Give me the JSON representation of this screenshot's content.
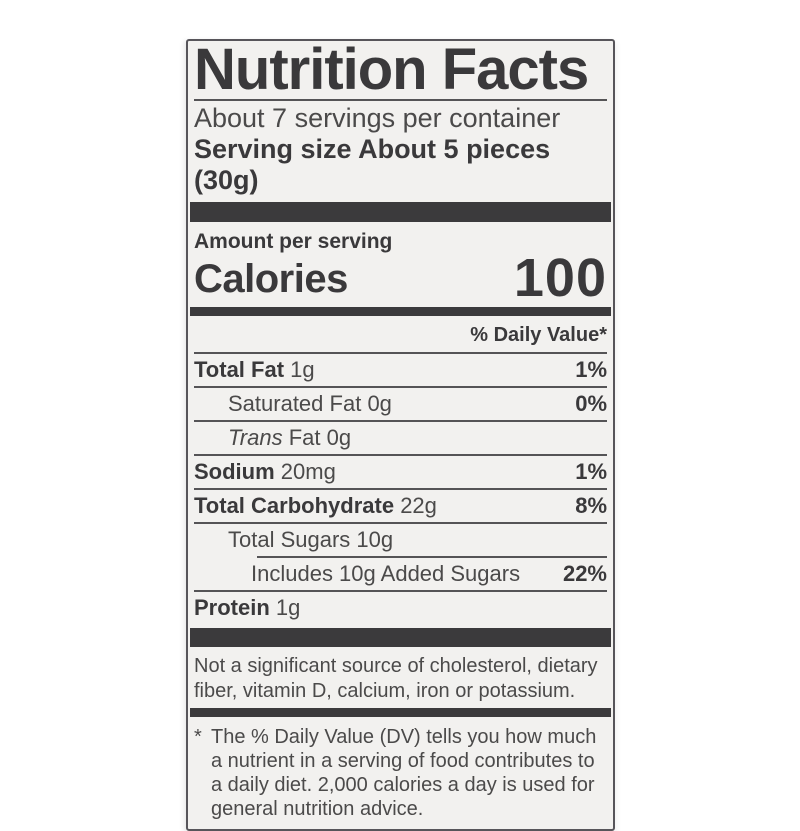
{
  "label": {
    "title": "Nutrition Facts",
    "servings_per_container": "About 7 servings per container",
    "serving_size_label": "Serving size",
    "serving_size_value": "About 5 pieces (30g)",
    "amount_per_serving": "Amount per serving",
    "calories_label": "Calories",
    "calories_value": "100",
    "daily_value_header": "% Daily Value*",
    "rows": [
      {
        "name": "Total Fat",
        "amount": "1g",
        "dv": "1%"
      },
      {
        "name": "Saturated Fat",
        "amount": "0g",
        "dv": "0%"
      },
      {
        "name": "Trans",
        "amount": "Fat 0g",
        "dv": ""
      },
      {
        "name": "Sodium",
        "amount": "20mg",
        "dv": "1%"
      },
      {
        "name": "Total Carbohydrate",
        "amount": "22g",
        "dv": "8%"
      },
      {
        "name": "Total Sugars",
        "amount": "10g",
        "dv": ""
      },
      {
        "name": "Includes 10g Added Sugars",
        "amount": "",
        "dv": "22%"
      },
      {
        "name": "Protein",
        "amount": "1g",
        "dv": ""
      }
    ],
    "not_significant": "Not a significant source of cholesterol, dietary fiber, vitamin D, calcium, iron or potassium.",
    "footnote_marker": "*",
    "footnote": "The % Daily Value (DV) tells you how much a nutrient in a serving of food contributes to a daily diet. 2,000 calories a day is used for general nutrition advice.",
    "colors": {
      "ink_bold": "#3a393b",
      "ink_regular": "#4b4a4a",
      "bar": "#3b3a3c",
      "label_background": "#f2f1ef",
      "page_background": "#ffffff"
    }
  }
}
